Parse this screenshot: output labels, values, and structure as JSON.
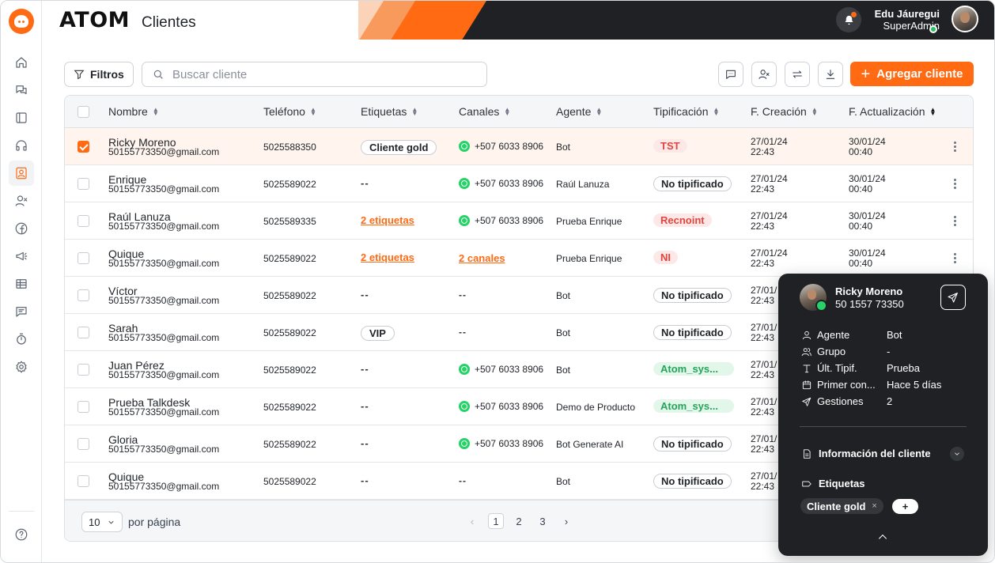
{
  "app": {
    "brand": "ATOM",
    "page_title": "Clientes"
  },
  "header": {
    "user_name": "Edu Jáuregui",
    "user_role": "SuperAdmin",
    "colors": {
      "accent": "#ff6a13",
      "dark": "#1f2124"
    }
  },
  "sidebar": {
    "items": [
      {
        "icon": "home-icon"
      },
      {
        "icon": "chat-icon"
      },
      {
        "icon": "layout-icon"
      },
      {
        "icon": "headset-icon"
      },
      {
        "icon": "contacts-icon",
        "active": true
      },
      {
        "icon": "user-x-icon"
      },
      {
        "icon": "facebook-icon"
      },
      {
        "icon": "megaphone-icon"
      },
      {
        "icon": "table-icon"
      },
      {
        "icon": "message-icon"
      },
      {
        "icon": "timer-icon"
      },
      {
        "icon": "settings-icon"
      },
      {
        "icon": "help-icon"
      }
    ]
  },
  "toolbar": {
    "filters_label": "Filtros",
    "search_placeholder": "Buscar cliente",
    "add_label": "Agregar cliente"
  },
  "table": {
    "columns": [
      "Nombre",
      "Teléfono",
      "Etiquetas",
      "Canales",
      "Agente",
      "Tipificación",
      "F. Creación",
      "F. Actualización"
    ],
    "rows": [
      {
        "name": "Ricky Moreno",
        "email": "50155773350@gmail.com",
        "phone": "5025588350",
        "tags": "Cliente gold",
        "tags_type": "chip",
        "channel": "+507 6033 8906",
        "channel_type": "wa",
        "agent": "Bot",
        "tip": "TST",
        "tip_type": "red",
        "created": "27/01/24",
        "created_time": "22:43",
        "updated": "30/01/24",
        "updated_time": "00:40",
        "selected": true
      },
      {
        "name": "Enrique",
        "email": "50155773350@gmail.com",
        "phone": "5025589022",
        "tags": "--",
        "tags_type": "dash",
        "channel": "+507 6033 8906",
        "channel_type": "wa",
        "agent": "Raúl Lanuza",
        "tip": "No tipificado",
        "tip_type": "outline",
        "created": "27/01/24",
        "created_time": "22:43",
        "updated": "30/01/24",
        "updated_time": "00:40"
      },
      {
        "name": "Raúl Lanuza",
        "email": "50155773350@gmail.com",
        "phone": "5025589335",
        "tags": "2 etiquetas",
        "tags_type": "link",
        "channel": "+507 6033 8906",
        "channel_type": "wa",
        "agent": "Prueba Enrique",
        "tip": "Recnoint",
        "tip_type": "red",
        "created": "27/01/24",
        "created_time": "22:43",
        "updated": "30/01/24",
        "updated_time": "00:40"
      },
      {
        "name": "Quique",
        "email": "50155773350@gmail.com",
        "phone": "5025589022",
        "tags": "2 etiquetas",
        "tags_type": "link",
        "channel": "2 canales",
        "channel_type": "link",
        "agent": "Prueba Enrique",
        "tip": "NI",
        "tip_type": "red",
        "created": "27/01/24",
        "created_time": "22:43",
        "updated": "30/01/24",
        "updated_time": "00:40"
      },
      {
        "name": "Víctor",
        "email": "50155773350@gmail.com",
        "phone": "5025589022",
        "tags": "--",
        "tags_type": "dash",
        "channel": "--",
        "channel_type": "dash",
        "agent": "Bot",
        "tip": "No tipificado",
        "tip_type": "outline",
        "created": "27/01/",
        "created_time": "22:43",
        "updated": "",
        "updated_time": ""
      },
      {
        "name": "Sarah",
        "email": "50155773350@gmail.com",
        "phone": "5025589022",
        "tags": "VIP",
        "tags_type": "chip",
        "channel": "--",
        "channel_type": "dash",
        "agent": "Bot",
        "tip": "No tipificado",
        "tip_type": "outline",
        "created": "27/01/",
        "created_time": "22:43",
        "updated": "",
        "updated_time": ""
      },
      {
        "name": "Juan Pérez",
        "email": "50155773350@gmail.com",
        "phone": "5025589022",
        "tags": "--",
        "tags_type": "dash",
        "channel": "+507 6033 8906",
        "channel_type": "wa",
        "agent": "Bot",
        "tip": "Atom_sys...",
        "tip_type": "green",
        "created": "27/01/",
        "created_time": "22:43",
        "updated": "",
        "updated_time": ""
      },
      {
        "name": "Prueba Talkdesk",
        "email": "50155773350@gmail.com",
        "phone": "5025589022",
        "tags": "--",
        "tags_type": "dash",
        "channel": "+507 6033 8906",
        "channel_type": "wa",
        "agent": "Demo de Producto",
        "tip": "Atom_sys...",
        "tip_type": "green",
        "created": "27/01/",
        "created_time": "22:43",
        "updated": "",
        "updated_time": ""
      },
      {
        "name": "Gloria",
        "email": "50155773350@gmail.com",
        "phone": "5025589022",
        "tags": "--",
        "tags_type": "dash",
        "channel": "+507 6033 8906",
        "channel_type": "wa",
        "agent": "Bot Generate AI",
        "tip": "No tipificado",
        "tip_type": "outline",
        "created": "27/01/",
        "created_time": "22:43",
        "updated": "",
        "updated_time": ""
      },
      {
        "name": "Quique",
        "email": "50155773350@gmail.com",
        "phone": "5025589022",
        "tags": "--",
        "tags_type": "dash",
        "channel": "--",
        "channel_type": "dash",
        "agent": "Bot",
        "tip": "No tipificado",
        "tip_type": "outline",
        "created": "27/01/",
        "created_time": "22:43",
        "updated": "",
        "updated_time": ""
      }
    ]
  },
  "pagination": {
    "per_page": "10",
    "per_page_label": "por página",
    "pages": [
      "1",
      "2",
      "3"
    ],
    "current": "1",
    "prev": "‹",
    "next": "›"
  },
  "popover": {
    "name": "Ricky Moreno",
    "phone": "50 1557 73350",
    "fields": [
      {
        "icon": "user-icon",
        "label": "Agente",
        "value": "Bot"
      },
      {
        "icon": "group-icon",
        "label": "Grupo",
        "value": "-"
      },
      {
        "icon": "type-icon",
        "label": "Últ. Tipif.",
        "value": "Prueba"
      },
      {
        "icon": "calendar-icon",
        "label": "Primer con...",
        "value": "Hace 5 días"
      },
      {
        "icon": "send-icon",
        "label": "Gestiones",
        "value": "2"
      }
    ],
    "info_section": "Información del cliente",
    "tags_section": "Etiquetas",
    "tag": "Cliente gold",
    "tag_remove": "×",
    "add_tag": "+"
  }
}
